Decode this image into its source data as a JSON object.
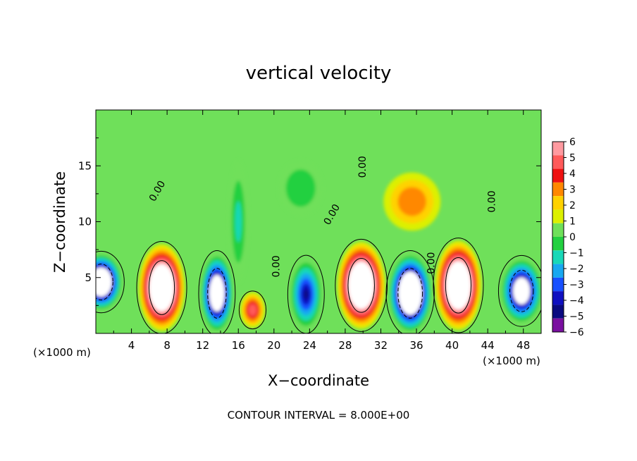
{
  "chart_data": {
    "type": "heatmap",
    "title": "vertical velocity",
    "xlabel": "X−coordinate",
    "ylabel": "Z−coordinate",
    "x_unit": "(×1000 m)",
    "z_unit": "(×1000 m)",
    "xlim": [
      0,
      50
    ],
    "ylim": [
      0,
      20
    ],
    "x_ticks": [
      4,
      8,
      12,
      16,
      20,
      24,
      28,
      32,
      36,
      40,
      44,
      48
    ],
    "y_ticks": [
      5,
      10,
      15
    ],
    "footer": "CONTOUR INTERVAL = 8.000E+00",
    "colorbar": {
      "ticks": [
        6,
        5,
        4,
        3,
        2,
        1,
        0,
        -1,
        -2,
        -3,
        -4,
        -5,
        -6
      ],
      "labels": [
        "6",
        "5",
        "4",
        "3",
        "2",
        "1",
        "0",
        "−1",
        "−2",
        "−3",
        "−4",
        "−5",
        "−6"
      ],
      "colors": [
        "#ff9aa0",
        "#ff5a5a",
        "#ee1111",
        "#ff8800",
        "#ffd200",
        "#dcf000",
        "#6fe05a",
        "#22d040",
        "#18d8b8",
        "#18a8f0",
        "#1850ff",
        "#1010c0",
        "#0a0a80",
        "#7a10a0"
      ]
    },
    "contour_labels": [
      {
        "text": "0.00",
        "x": 7.2,
        "z": 12.6,
        "rotate": -60
      },
      {
        "text": "0.00",
        "x": 20.6,
        "z": 6.0,
        "rotate": -90
      },
      {
        "text": "0.00",
        "x": 26.8,
        "z": 10.5,
        "rotate": -60
      },
      {
        "text": "0.00",
        "x": 30.3,
        "z": 14.9,
        "rotate": -90
      },
      {
        "text": "0.00",
        "x": 38.0,
        "z": 6.3,
        "rotate": -90
      },
      {
        "text": "0.00",
        "x": 44.8,
        "z": 11.8,
        "rotate": -90
      }
    ],
    "features": [
      {
        "kind": "updraft",
        "x": 7.4,
        "z": 4.1,
        "rx": 2.6,
        "rz": 3.9,
        "peak": 12
      },
      {
        "kind": "downdraft",
        "x": 13.6,
        "z": 3.6,
        "rx": 1.9,
        "rz": 3.6,
        "peak": -10
      },
      {
        "kind": "updraft",
        "x": 17.6,
        "z": 2.1,
        "rx": 1.4,
        "rz": 1.6,
        "peak": 5
      },
      {
        "kind": "downdraft",
        "x": 23.6,
        "z": 3.5,
        "rx": 1.9,
        "rz": 3.3,
        "peak": -6
      },
      {
        "kind": "updraft",
        "x": 29.8,
        "z": 4.3,
        "rx": 2.7,
        "rz": 3.9,
        "peak": 12
      },
      {
        "kind": "downdraft",
        "x": 35.3,
        "z": 3.6,
        "rx": 2.5,
        "rz": 3.6,
        "peak": -12
      },
      {
        "kind": "updraft",
        "x": 40.7,
        "z": 4.3,
        "rx": 2.6,
        "rz": 4.0,
        "peak": 12
      },
      {
        "kind": "downdraft",
        "x": 47.8,
        "z": 3.8,
        "rx": 2.4,
        "rz": 3.0,
        "peak": -9
      },
      {
        "kind": "downdraft",
        "x": 0.6,
        "z": 4.6,
        "rx": 2.4,
        "rz": 2.6,
        "peak": -11
      },
      {
        "kind": "updraft",
        "x": 35.5,
        "z": 11.8,
        "rx": 3.2,
        "rz": 2.6,
        "peak": 3
      },
      {
        "kind": "downdraft",
        "x": 16.0,
        "z": 10.0,
        "rx": 1.1,
        "rz": 5.5,
        "peak": -2
      },
      {
        "kind": "downdraft",
        "x": 23.0,
        "z": 13.0,
        "rx": 2.5,
        "rz": 2.5,
        "peak": -1.5
      }
    ]
  }
}
